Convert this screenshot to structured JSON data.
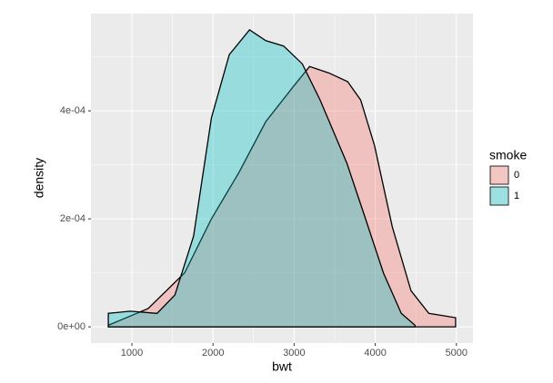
{
  "chart_data": {
    "type": "density",
    "x_label": "bwt",
    "y_label": "density",
    "legend_title": "smoke",
    "legend_position": "right",
    "grid": true,
    "alpha": 0.35,
    "xlim": [
      495,
      5204
    ],
    "ylim": [
      -3e-05,
      0.00058
    ],
    "xticks": [
      1000,
      2000,
      3000,
      4000,
      5000
    ],
    "yticks": [
      {
        "value": 0,
        "label": "0e+00"
      },
      {
        "value": 0.0002,
        "label": "2e-04"
      },
      {
        "value": 0.0004,
        "label": "4e-04"
      }
    ],
    "series": [
      {
        "name": "0",
        "color": "#F8766D",
        "x": [
          709,
          1200,
          1650,
          1980,
          2320,
          2650,
          2990,
          3190,
          3430,
          3660,
          3820,
          3990,
          4210,
          4440,
          4660,
          4990
        ],
        "values": [
          3e-06,
          3.4e-05,
          0.0001,
          0.0002,
          0.000286,
          0.00038,
          0.000445,
          0.000482,
          0.00047,
          0.000454,
          0.00042,
          0.000336,
          0.000185,
          6.7e-05,
          2.5e-05,
          1.7e-05
        ]
      },
      {
        "name": "1",
        "color": "#00BFC4",
        "x": [
          709,
          980,
          1310,
          1530,
          1760,
          1980,
          2200,
          2450,
          2650,
          2870,
          3100,
          3320,
          3650,
          3880,
          4100,
          4320,
          4490
        ],
        "values": [
          2.5e-05,
          2.9e-05,
          2.5e-05,
          5.9e-05,
          0.000168,
          0.000387,
          0.000504,
          0.00055,
          0.00053,
          0.00052,
          0.000487,
          0.00042,
          0.000303,
          0.0002,
          0.0001,
          2.5e-05,
          3e-06
        ]
      }
    ]
  }
}
